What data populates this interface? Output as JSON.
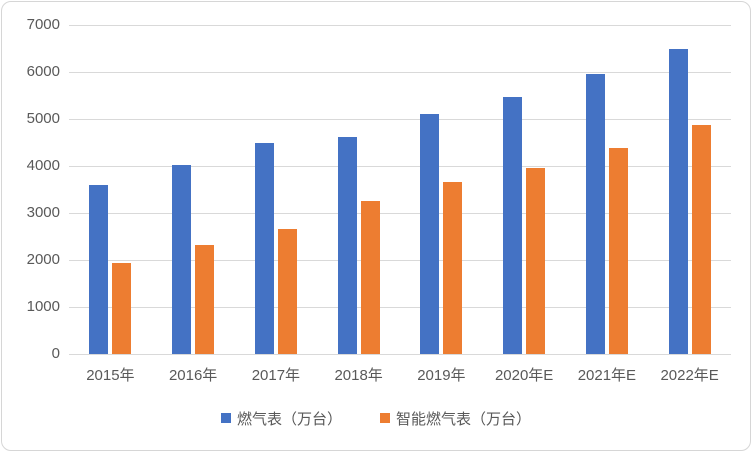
{
  "chart_data": {
    "type": "bar",
    "title": "",
    "xlabel": "",
    "ylabel": "",
    "categories": [
      "2015年",
      "2016年",
      "2017年",
      "2018年",
      "2019年",
      "2020年E",
      "2021年E",
      "2022年E"
    ],
    "series": [
      {
        "name": "燃气表（万台）",
        "color": "#4472C4",
        "values": [
          3590,
          4030,
          4500,
          4620,
          5100,
          5460,
          5960,
          6480
        ]
      },
      {
        "name": "智能燃气表（万台）",
        "color": "#ED7D31",
        "values": [
          1930,
          2330,
          2650,
          3250,
          3650,
          3950,
          4390,
          4880
        ]
      }
    ],
    "ylim": [
      0,
      7000
    ],
    "ytick_step": 1000,
    "yticks": [
      "0",
      "1000",
      "2000",
      "3000",
      "4000",
      "5000",
      "6000",
      "7000"
    ],
    "grid": true,
    "legend_position": "bottom"
  },
  "colors": {
    "gridline": "#D9D9D9",
    "axis_text": "#595959",
    "frame_border": "#D6D6D6",
    "background": "#FFFFFF"
  }
}
